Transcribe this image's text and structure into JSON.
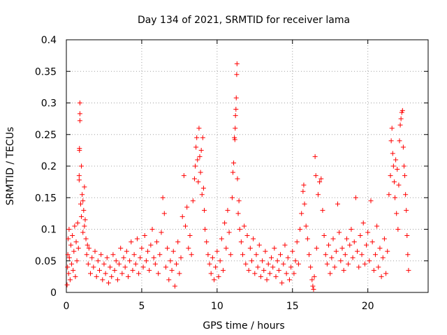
{
  "chart_data": {
    "type": "scatter",
    "title": "Day 134 of 2021, SRMTID for receiver lama",
    "xlabel": "GPS time / hours",
    "ylabel": "SRMTID / TECUs",
    "xlim": [
      0,
      24
    ],
    "ylim": [
      0,
      0.4
    ],
    "x_ticks": [
      0,
      5,
      10,
      15,
      20
    ],
    "y_ticks": [
      0,
      0.05,
      0.1,
      0.15,
      0.2,
      0.25,
      0.3,
      0.35,
      0.4
    ],
    "x_tick_labels": [
      "0",
      "5",
      "10",
      "15",
      "20"
    ],
    "y_tick_labels": [
      "0",
      "0.05",
      "0.1",
      "0.15",
      "0.2",
      "0.25",
      "0.3",
      "0.35",
      "0.4"
    ],
    "grid": true,
    "marker": "+",
    "color": "#ff0000",
    "series": [
      {
        "name": "SRMTID",
        "points": [
          [
            0.05,
            0.012
          ],
          [
            0.08,
            0.04
          ],
          [
            0.1,
            0.06
          ],
          [
            0.12,
            0.085
          ],
          [
            0.15,
            0.03
          ],
          [
            0.18,
            0.1
          ],
          [
            0.2,
            0.055
          ],
          [
            0.25,
            0.02
          ],
          [
            0.3,
            0.075
          ],
          [
            0.35,
            0.045
          ],
          [
            0.4,
            0.09
          ],
          [
            0.45,
            0.035
          ],
          [
            0.5,
            0.065
          ],
          [
            0.55,
            0.105
          ],
          [
            0.6,
            0.025
          ],
          [
            0.65,
            0.08
          ],
          [
            0.7,
            0.05
          ],
          [
            0.75,
            0.11
          ],
          [
            0.8,
            0.07
          ],
          [
            0.85,
            0.185
          ],
          [
            0.85,
            0.178
          ],
          [
            0.87,
            0.228
          ],
          [
            0.87,
            0.225
          ],
          [
            0.9,
            0.3
          ],
          [
            0.9,
            0.283
          ],
          [
            0.9,
            0.272
          ],
          [
            0.95,
            0.14
          ],
          [
            1.0,
            0.2
          ],
          [
            1.0,
            0.12
          ],
          [
            1.05,
            0.155
          ],
          [
            1.1,
            0.095
          ],
          [
            1.1,
            0.145
          ],
          [
            1.15,
            0.13
          ],
          [
            1.2,
            0.167
          ],
          [
            1.2,
            0.105
          ],
          [
            1.25,
            0.115
          ],
          [
            1.3,
            0.085
          ],
          [
            1.35,
            0.06
          ],
          [
            1.4,
            0.075
          ],
          [
            1.45,
            0.045
          ],
          [
            1.5,
            0.07
          ],
          [
            1.6,
            0.03
          ],
          [
            1.7,
            0.055
          ],
          [
            1.8,
            0.04
          ],
          [
            1.9,
            0.065
          ],
          [
            2.0,
            0.025
          ],
          [
            2.1,
            0.05
          ],
          [
            2.2,
            0.035
          ],
          [
            2.3,
            0.06
          ],
          [
            2.4,
            0.02
          ],
          [
            2.5,
            0.045
          ],
          [
            2.6,
            0.03
          ],
          [
            2.7,
            0.055
          ],
          [
            2.8,
            0.015
          ],
          [
            2.9,
            0.04
          ],
          [
            3.0,
            0.025
          ],
          [
            3.1,
            0.06
          ],
          [
            3.2,
            0.035
          ],
          [
            3.3,
            0.05
          ],
          [
            3.4,
            0.02
          ],
          [
            3.5,
            0.045
          ],
          [
            3.6,
            0.07
          ],
          [
            3.7,
            0.03
          ],
          [
            3.8,
            0.055
          ],
          [
            3.9,
            0.04
          ],
          [
            4.0,
            0.065
          ],
          [
            4.1,
            0.025
          ],
          [
            4.2,
            0.05
          ],
          [
            4.3,
            0.08
          ],
          [
            4.4,
            0.035
          ],
          [
            4.5,
            0.06
          ],
          [
            4.6,
            0.045
          ],
          [
            4.7,
            0.085
          ],
          [
            4.8,
            0.03
          ],
          [
            4.9,
            0.055
          ],
          [
            5.0,
            0.07
          ],
          [
            5.1,
            0.04
          ],
          [
            5.2,
            0.09
          ],
          [
            5.3,
            0.05
          ],
          [
            5.4,
            0.065
          ],
          [
            5.5,
            0.035
          ],
          [
            5.6,
            0.075
          ],
          [
            5.7,
            0.1
          ],
          [
            5.8,
            0.055
          ],
          [
            5.9,
            0.045
          ],
          [
            6.0,
            0.08
          ],
          [
            6.1,
            0.03
          ],
          [
            6.2,
            0.06
          ],
          [
            6.3,
            0.095
          ],
          [
            6.4,
            0.15
          ],
          [
            6.5,
            0.125
          ],
          [
            6.6,
            0.04
          ],
          [
            6.7,
            0.07
          ],
          [
            6.8,
            0.02
          ],
          [
            6.9,
            0.05
          ],
          [
            7.0,
            0.035
          ],
          [
            7.1,
            0.065
          ],
          [
            7.2,
            0.01
          ],
          [
            7.3,
            0.045
          ],
          [
            7.4,
            0.08
          ],
          [
            7.5,
            0.03
          ],
          [
            7.6,
            0.055
          ],
          [
            7.7,
            0.12
          ],
          [
            7.8,
            0.185
          ],
          [
            7.9,
            0.105
          ],
          [
            8.0,
            0.135
          ],
          [
            8.1,
            0.07
          ],
          [
            8.2,
            0.09
          ],
          [
            8.3,
            0.06
          ],
          [
            8.4,
            0.145
          ],
          [
            8.5,
            0.18
          ],
          [
            8.55,
            0.2
          ],
          [
            8.6,
            0.23
          ],
          [
            8.65,
            0.245
          ],
          [
            8.7,
            0.21
          ],
          [
            8.75,
            0.175
          ],
          [
            8.8,
            0.26
          ],
          [
            8.85,
            0.215
          ],
          [
            8.9,
            0.19
          ],
          [
            8.95,
            0.225
          ],
          [
            9.0,
            0.155
          ],
          [
            9.05,
            0.245
          ],
          [
            9.1,
            0.165
          ],
          [
            9.15,
            0.13
          ],
          [
            9.2,
            0.1
          ],
          [
            9.3,
            0.08
          ],
          [
            9.4,
            0.06
          ],
          [
            9.5,
            0.045
          ],
          [
            9.6,
            0.03
          ],
          [
            9.7,
            0.055
          ],
          [
            9.8,
            0.02
          ],
          [
            9.9,
            0.04
          ],
          [
            10.0,
            0.065
          ],
          [
            10.1,
            0.025
          ],
          [
            10.2,
            0.05
          ],
          [
            10.3,
            0.085
          ],
          [
            10.4,
            0.035
          ],
          [
            10.5,
            0.11
          ],
          [
            10.6,
            0.07
          ],
          [
            10.7,
            0.13
          ],
          [
            10.8,
            0.095
          ],
          [
            10.9,
            0.06
          ],
          [
            11.0,
            0.15
          ],
          [
            11.05,
            0.19
          ],
          [
            11.1,
            0.205
          ],
          [
            11.15,
            0.245
          ],
          [
            11.18,
            0.242
          ],
          [
            11.2,
            0.26
          ],
          [
            11.22,
            0.28
          ],
          [
            11.25,
            0.29
          ],
          [
            11.27,
            0.308
          ],
          [
            11.3,
            0.345
          ],
          [
            11.32,
            0.362
          ],
          [
            11.35,
            0.18
          ],
          [
            11.4,
            0.125
          ],
          [
            11.45,
            0.145
          ],
          [
            11.5,
            0.1
          ],
          [
            11.6,
            0.08
          ],
          [
            11.7,
            0.06
          ],
          [
            11.8,
            0.105
          ],
          [
            11.9,
            0.045
          ],
          [
            12.0,
            0.09
          ],
          [
            12.1,
            0.035
          ],
          [
            12.2,
            0.07
          ],
          [
            12.3,
            0.05
          ],
          [
            12.4,
            0.085
          ],
          [
            12.5,
            0.03
          ],
          [
            12.6,
            0.06
          ],
          [
            12.7,
            0.04
          ],
          [
            12.8,
            0.075
          ],
          [
            12.9,
            0.025
          ],
          [
            13.0,
            0.05
          ],
          [
            13.1,
            0.035
          ],
          [
            13.2,
            0.065
          ],
          [
            13.3,
            0.02
          ],
          [
            13.4,
            0.045
          ],
          [
            13.5,
            0.03
          ],
          [
            13.6,
            0.055
          ],
          [
            13.7,
            0.04
          ],
          [
            13.8,
            0.07
          ],
          [
            13.9,
            0.025
          ],
          [
            14.0,
            0.05
          ],
          [
            14.1,
            0.035
          ],
          [
            14.2,
            0.06
          ],
          [
            14.3,
            0.015
          ],
          [
            14.4,
            0.045
          ],
          [
            14.5,
            0.075
          ],
          [
            14.6,
            0.03
          ],
          [
            14.7,
            0.055
          ],
          [
            14.8,
            0.02
          ],
          [
            14.9,
            0.04
          ],
          [
            15.0,
            0.065
          ],
          [
            15.1,
            0.03
          ],
          [
            15.2,
            0.05
          ],
          [
            15.3,
            0.08
          ],
          [
            15.4,
            0.045
          ],
          [
            15.5,
            0.1
          ],
          [
            15.6,
            0.125
          ],
          [
            15.7,
            0.16
          ],
          [
            15.75,
            0.17
          ],
          [
            15.8,
            0.14
          ],
          [
            15.9,
            0.105
          ],
          [
            16.0,
            0.085
          ],
          [
            16.1,
            0.06
          ],
          [
            16.2,
            0.04
          ],
          [
            16.3,
            0.02
          ],
          [
            16.35,
            0.01
          ],
          [
            16.4,
            0.005
          ],
          [
            16.45,
            0.025
          ],
          [
            16.5,
            0.215
          ],
          [
            16.55,
            0.185
          ],
          [
            16.6,
            0.07
          ],
          [
            16.7,
            0.155
          ],
          [
            16.8,
            0.175
          ],
          [
            16.9,
            0.18
          ],
          [
            17.0,
            0.13
          ],
          [
            17.1,
            0.09
          ],
          [
            17.2,
            0.06
          ],
          [
            17.3,
            0.045
          ],
          [
            17.4,
            0.075
          ],
          [
            17.5,
            0.03
          ],
          [
            17.6,
            0.055
          ],
          [
            17.7,
            0.085
          ],
          [
            17.8,
            0.04
          ],
          [
            17.9,
            0.065
          ],
          [
            18.0,
            0.14
          ],
          [
            18.1,
            0.095
          ],
          [
            18.2,
            0.05
          ],
          [
            18.3,
            0.07
          ],
          [
            18.4,
            0.035
          ],
          [
            18.5,
            0.06
          ],
          [
            18.6,
            0.085
          ],
          [
            18.7,
            0.045
          ],
          [
            18.8,
            0.075
          ],
          [
            18.9,
            0.1
          ],
          [
            19.0,
            0.055
          ],
          [
            19.1,
            0.08
          ],
          [
            19.2,
            0.15
          ],
          [
            19.3,
            0.065
          ],
          [
            19.4,
            0.04
          ],
          [
            19.5,
            0.09
          ],
          [
            19.6,
            0.06
          ],
          [
            19.7,
            0.11
          ],
          [
            19.8,
            0.045
          ],
          [
            19.9,
            0.075
          ],
          [
            20.0,
            0.095
          ],
          [
            20.1,
            0.05
          ],
          [
            20.2,
            0.145
          ],
          [
            20.3,
            0.08
          ],
          [
            20.4,
            0.035
          ],
          [
            20.5,
            0.06
          ],
          [
            20.6,
            0.105
          ],
          [
            20.7,
            0.04
          ],
          [
            20.8,
            0.07
          ],
          [
            20.9,
            0.025
          ],
          [
            21.0,
            0.055
          ],
          [
            21.1,
            0.085
          ],
          [
            21.2,
            0.03
          ],
          [
            21.3,
            0.065
          ],
          [
            21.4,
            0.155
          ],
          [
            21.5,
            0.185
          ],
          [
            21.55,
            0.24
          ],
          [
            21.6,
            0.26
          ],
          [
            21.65,
            0.22
          ],
          [
            21.7,
            0.2
          ],
          [
            21.75,
            0.175
          ],
          [
            21.8,
            0.15
          ],
          [
            21.85,
            0.21
          ],
          [
            21.9,
            0.125
          ],
          [
            21.95,
            0.195
          ],
          [
            22.0,
            0.1
          ],
          [
            22.05,
            0.17
          ],
          [
            22.1,
            0.24
          ],
          [
            22.15,
            0.265
          ],
          [
            22.2,
            0.275
          ],
          [
            22.25,
            0.285
          ],
          [
            22.3,
            0.288
          ],
          [
            22.35,
            0.23
          ],
          [
            22.4,
            0.2
          ],
          [
            22.45,
            0.185
          ],
          [
            22.5,
            0.155
          ],
          [
            22.55,
            0.13
          ],
          [
            22.6,
            0.09
          ],
          [
            22.65,
            0.06
          ],
          [
            22.7,
            0.035
          ]
        ]
      }
    ]
  }
}
